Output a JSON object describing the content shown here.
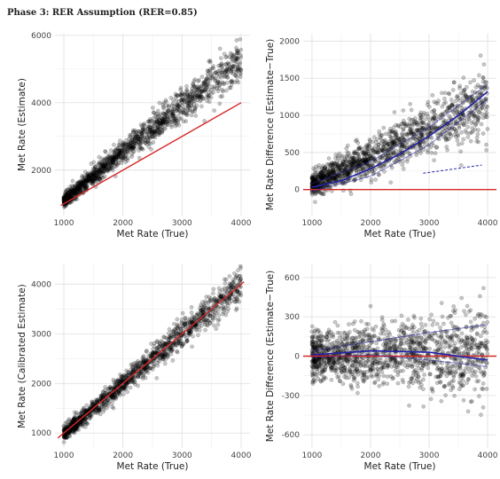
{
  "figure_title": "Phase 3: RER Assumption (RER=0.85)",
  "colors": {
    "points": "#000000",
    "reference_line": "#d62728",
    "fit_line": "#2222aa",
    "grid": "#ebebeb"
  },
  "chart_data": [
    {
      "type": "scatter",
      "id": "estimate-vs-true",
      "title": "",
      "xlabel": "Met Rate (True)",
      "ylabel": "Met Rate (Estimate)",
      "xlim": [
        850,
        4150
      ],
      "ylim": [
        650,
        6050
      ],
      "xticks": [
        1000,
        2000,
        3000,
        4000
      ],
      "yticks": [
        2000,
        4000,
        6000
      ],
      "grid": true,
      "point_cloud": {
        "x_range": [
          1000,
          4000
        ],
        "trend": [
          [
            1000,
            1100
          ],
          [
            2000,
            2550
          ],
          [
            3000,
            3900
          ],
          [
            4000,
            5300
          ]
        ],
        "spread": [
          [
            1000,
            150
          ],
          [
            4000,
            500
          ]
        ],
        "count": 1400
      },
      "lines": [
        {
          "role": "identity",
          "points": [
            [
              950,
              950
            ],
            [
              4000,
              4000
            ]
          ]
        }
      ]
    },
    {
      "type": "scatter",
      "id": "difference-vs-true",
      "title": "",
      "xlabel": "Met Rate (True)",
      "ylabel": "Met Rate Difference (Estimate−True)",
      "xlim": [
        850,
        4150
      ],
      "ylim": [
        -350,
        2100
      ],
      "xticks": [
        1000,
        2000,
        3000,
        4000
      ],
      "yticks": [
        0,
        500,
        1000,
        1500,
        2000
      ],
      "grid": true,
      "point_cloud": {
        "x_range": [
          1000,
          4000
        ],
        "trend": [
          [
            1000,
            80
          ],
          [
            2000,
            420
          ],
          [
            3000,
            820
          ],
          [
            4000,
            1200
          ]
        ],
        "spread": [
          [
            1000,
            120
          ],
          [
            4000,
            380
          ]
        ],
        "count": 1400
      },
      "lines": [
        {
          "role": "zero",
          "points": [
            [
              850,
              0
            ],
            [
              4150,
              0
            ]
          ]
        },
        {
          "role": "fit",
          "points": [
            [
              1000,
              30
            ],
            [
              1500,
              120
            ],
            [
              2000,
              280
            ],
            [
              2500,
              480
            ],
            [
              3000,
              720
            ],
            [
              3500,
              1000
            ],
            [
              4000,
              1320
            ]
          ]
        },
        {
          "role": "fit-upper",
          "points": [
            [
              1000,
              80
            ],
            [
              2000,
              380
            ],
            [
              3000,
              840
            ],
            [
              4000,
              1420
            ]
          ]
        },
        {
          "role": "fit-lower",
          "points": [
            [
              1000,
              -20
            ],
            [
              2000,
              180
            ],
            [
              3000,
              600
            ],
            [
              4000,
              1220
            ]
          ]
        },
        {
          "role": "fit-dashed",
          "points": [
            [
              2900,
              220
            ],
            [
              3900,
              330
            ]
          ]
        }
      ]
    },
    {
      "type": "scatter",
      "id": "calibrated-vs-true",
      "title": "",
      "xlabel": "Met Rate (True)",
      "ylabel": "Met Rate (Calibrated Estimate)",
      "xlim": [
        850,
        4150
      ],
      "ylim": [
        700,
        4400
      ],
      "xticks": [
        1000,
        2000,
        3000,
        4000
      ],
      "yticks": [
        1000,
        2000,
        3000,
        4000
      ],
      "grid": true,
      "point_cloud": {
        "x_range": [
          1000,
          4000
        ],
        "trend": [
          [
            1000,
            1000
          ],
          [
            2000,
            2000
          ],
          [
            3000,
            3000
          ],
          [
            4000,
            4000
          ]
        ],
        "spread": [
          [
            1000,
            110
          ],
          [
            4000,
            280
          ]
        ],
        "count": 1400
      },
      "lines": [
        {
          "role": "identity",
          "points": [
            [
              900,
              900
            ],
            [
              4050,
              4050
            ]
          ]
        }
      ]
    },
    {
      "type": "scatter",
      "id": "calibrated-difference-vs-true",
      "title": "",
      "xlabel": "Met Rate (True)",
      "ylabel": "Met Rate Difference (Estimate−True)",
      "xlim": [
        850,
        4150
      ],
      "ylim": [
        -700,
        700
      ],
      "xticks": [
        1000,
        2000,
        3000,
        4000
      ],
      "yticks": [
        -600,
        -300,
        0,
        300,
        600
      ],
      "grid": true,
      "point_cloud": {
        "x_range": [
          1000,
          4000
        ],
        "trend": [
          [
            1000,
            0
          ],
          [
            2500,
            20
          ],
          [
            4000,
            0
          ]
        ],
        "spread": [
          [
            1000,
            130
          ],
          [
            4000,
            260
          ]
        ],
        "count": 1400
      },
      "lines": [
        {
          "role": "zero",
          "points": [
            [
              850,
              0
            ],
            [
              4150,
              0
            ]
          ]
        },
        {
          "role": "fit-upper",
          "points": [
            [
              1000,
              40
            ],
            [
              2000,
              110
            ],
            [
              3000,
              180
            ],
            [
              4000,
              240
            ]
          ]
        },
        {
          "role": "fit",
          "points": [
            [
              1000,
              10
            ],
            [
              2000,
              40
            ],
            [
              3000,
              30
            ],
            [
              4000,
              -30
            ]
          ]
        },
        {
          "role": "fit-lower",
          "points": [
            [
              1000,
              -10
            ],
            [
              2000,
              10
            ],
            [
              3000,
              -30
            ],
            [
              4000,
              -80
            ]
          ]
        }
      ]
    }
  ]
}
